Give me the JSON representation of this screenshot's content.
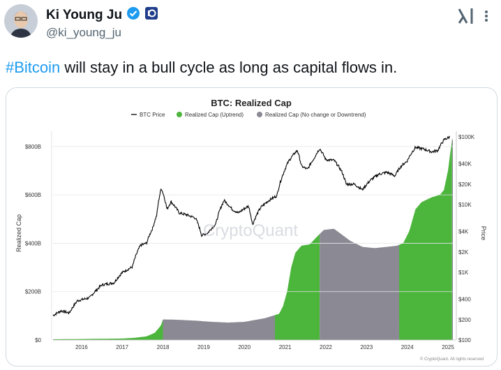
{
  "tweet": {
    "author_name": "Ki Young Ju",
    "handle": "@ki_young_ju",
    "text_hashtag": "#Bitcoin",
    "text_body": " will stay in a bull cycle as long as capital flows in."
  },
  "colors": {
    "hashtag": "#1d9bf0",
    "verified": "#1d9bf0",
    "uptrend": "#4cb53c",
    "downtrend": "#8b8a94"
  },
  "icons": [
    "verified-badge-icon",
    "affiliate-badge-icon",
    "grok-icon",
    "more-options-icon"
  ],
  "chart_data": {
    "type": "area",
    "title": "BTC: Realized Cap",
    "legend": [
      "BTC Price",
      "Realized Cap (Uptrend)",
      "Realized Cap (No change or Downtrend)"
    ],
    "legend_position": "top",
    "ylabel": "Realized Cap",
    "y2label": "Price",
    "watermark": "CryptoQuant",
    "footer": "© CryptoQuant. All rights reserved",
    "y_ticks": [
      "$0",
      "$200B",
      "$400B",
      "$600B",
      "$800B"
    ],
    "y2_ticks": [
      "$100",
      "$200",
      "$400",
      "$1K",
      "$2K",
      "$4K",
      "$10K",
      "$20K",
      "$40K",
      "$100K"
    ],
    "x_ticks": [
      "2016",
      "2017",
      "2018",
      "2019",
      "2020",
      "2021",
      "2022",
      "2023",
      "2024",
      "2025"
    ],
    "ylim": [
      0,
      840
    ],
    "y2_log": true,
    "realized_cap_billion": [
      [
        2015.3,
        3
      ],
      [
        2016,
        4
      ],
      [
        2016.5,
        5
      ],
      [
        2017,
        6
      ],
      [
        2017.3,
        9
      ],
      [
        2017.6,
        15
      ],
      [
        2017.8,
        30
      ],
      [
        2017.95,
        60
      ],
      [
        2018.0,
        85
      ],
      [
        2018.3,
        84
      ],
      [
        2018.8,
        80
      ],
      [
        2019.2,
        75
      ],
      [
        2019.6,
        72
      ],
      [
        2020.0,
        75
      ],
      [
        2020.5,
        90
      ],
      [
        2020.85,
        108
      ],
      [
        2020.95,
        140
      ],
      [
        2021.05,
        200
      ],
      [
        2021.15,
        300
      ],
      [
        2021.25,
        360
      ],
      [
        2021.4,
        390
      ],
      [
        2021.6,
        395
      ],
      [
        2021.8,
        430
      ],
      [
        2021.95,
        455
      ],
      [
        2022.2,
        460
      ],
      [
        2022.4,
        435
      ],
      [
        2022.6,
        410
      ],
      [
        2022.9,
        385
      ],
      [
        2023.2,
        380
      ],
      [
        2023.5,
        385
      ],
      [
        2023.75,
        390
      ],
      [
        2023.9,
        400
      ],
      [
        2024.05,
        450
      ],
      [
        2024.2,
        540
      ],
      [
        2024.35,
        570
      ],
      [
        2024.6,
        590
      ],
      [
        2024.8,
        600
      ],
      [
        2024.9,
        620
      ],
      [
        2025.0,
        700
      ],
      [
        2025.1,
        830
      ]
    ],
    "btc_price_usd": [
      [
        2015.3,
        230
      ],
      [
        2015.5,
        270
      ],
      [
        2015.7,
        250
      ],
      [
        2015.9,
        380
      ],
      [
        2016.2,
        420
      ],
      [
        2016.5,
        650
      ],
      [
        2016.8,
        700
      ],
      [
        2017.0,
        990
      ],
      [
        2017.25,
        1200
      ],
      [
        2017.45,
        2500
      ],
      [
        2017.6,
        2700
      ],
      [
        2017.75,
        4500
      ],
      [
        2017.85,
        7000
      ],
      [
        2017.96,
        17500
      ],
      [
        2018.1,
        8500
      ],
      [
        2018.2,
        11000
      ],
      [
        2018.4,
        7500
      ],
      [
        2018.6,
        7000
      ],
      [
        2018.8,
        6300
      ],
      [
        2018.95,
        3500
      ],
      [
        2019.1,
        3800
      ],
      [
        2019.3,
        5200
      ],
      [
        2019.5,
        11500
      ],
      [
        2019.7,
        8500
      ],
      [
        2019.85,
        7500
      ],
      [
        2020.1,
        9500
      ],
      [
        2020.2,
        5000
      ],
      [
        2020.4,
        9000
      ],
      [
        2020.6,
        11500
      ],
      [
        2020.8,
        13500
      ],
      [
        2020.95,
        28000
      ],
      [
        2021.1,
        45000
      ],
      [
        2021.3,
        63000
      ],
      [
        2021.4,
        37000
      ],
      [
        2021.55,
        33000
      ],
      [
        2021.7,
        47000
      ],
      [
        2021.85,
        67000
      ],
      [
        2022.0,
        46000
      ],
      [
        2022.2,
        45000
      ],
      [
        2022.4,
        30000
      ],
      [
        2022.5,
        20000
      ],
      [
        2022.7,
        20000
      ],
      [
        2022.9,
        16500
      ],
      [
        2023.1,
        23000
      ],
      [
        2023.3,
        28000
      ],
      [
        2023.5,
        30000
      ],
      [
        2023.7,
        26500
      ],
      [
        2023.85,
        37000
      ],
      [
        2024.0,
        44000
      ],
      [
        2024.2,
        70000
      ],
      [
        2024.4,
        66000
      ],
      [
        2024.6,
        60000
      ],
      [
        2024.75,
        63000
      ],
      [
        2024.9,
        90000
      ],
      [
        2025.0,
        97000
      ],
      [
        2025.05,
        100000
      ]
    ],
    "uptrend_periods": [
      [
        2015.3,
        2018.0
      ],
      [
        2020.75,
        2021.85
      ],
      [
        2023.8,
        2025.1
      ]
    ]
  }
}
